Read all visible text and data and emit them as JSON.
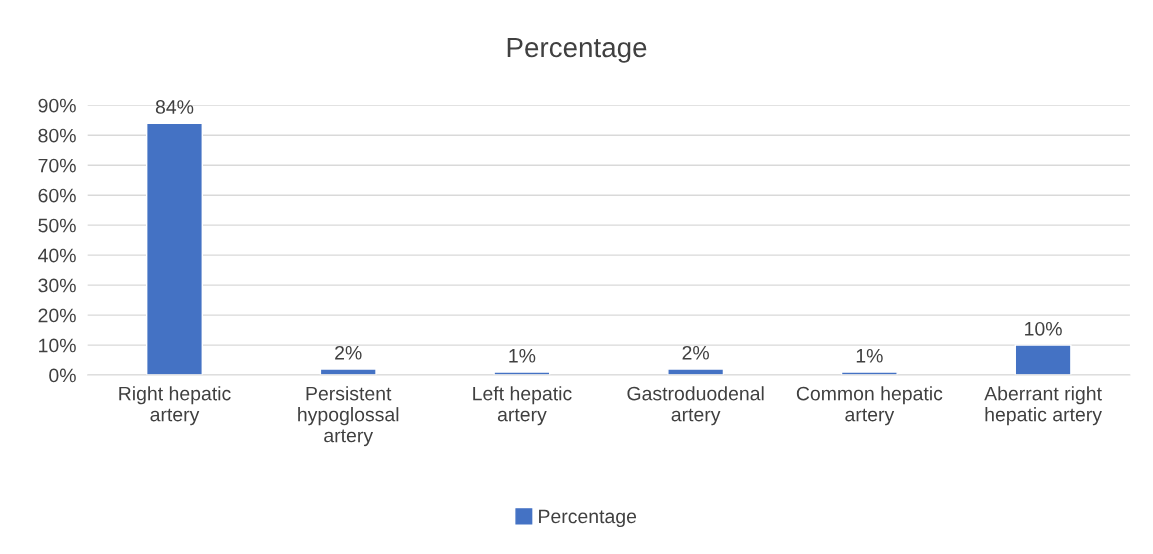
{
  "chart_data": {
    "type": "bar",
    "title": "Percentage",
    "categories": [
      "Right hepatic artery",
      "Persistent hypoglossal artery",
      "Left hepatic artery",
      "Gastroduodenal artery",
      "Common hepatic artery",
      "Aberrant right hepatic artery"
    ],
    "series": [
      {
        "name": "Percentage",
        "color": "#4472c4",
        "values": [
          84,
          2,
          1,
          2,
          1,
          10
        ],
        "value_labels": [
          "84%",
          "2%",
          "1%",
          "2%",
          "1%",
          "10%"
        ]
      }
    ],
    "ylim": [
      0,
      90
    ],
    "yticks": [
      {
        "value": 0,
        "label": "0%"
      },
      {
        "value": 10,
        "label": "10%"
      },
      {
        "value": 20,
        "label": "20%"
      },
      {
        "value": 30,
        "label": "30%"
      },
      {
        "value": 40,
        "label": "40%"
      },
      {
        "value": 50,
        "label": "50%"
      },
      {
        "value": 60,
        "label": "60%"
      },
      {
        "value": 70,
        "label": "70%"
      },
      {
        "value": 80,
        "label": "80%"
      },
      {
        "value": 90,
        "label": "90%"
      }
    ],
    "grid": "y",
    "legend": "bottom"
  }
}
